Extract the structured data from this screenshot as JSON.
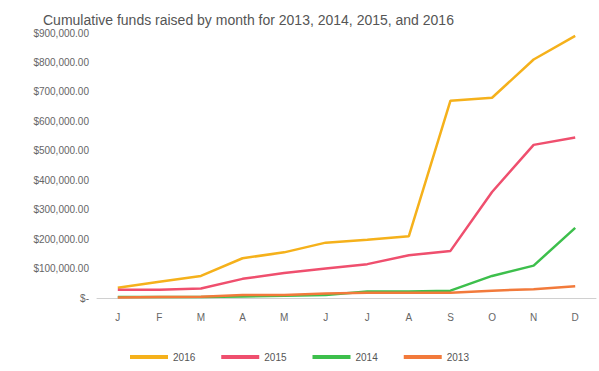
{
  "chart_data": {
    "type": "line",
    "title": "Cumulative funds raised by month for 2013, 2014, 2015, and 2016",
    "categories": [
      "J",
      "F",
      "M",
      "A",
      "M",
      "J",
      "J",
      "A",
      "S",
      "O",
      "N",
      "D"
    ],
    "series": [
      {
        "name": "2016",
        "color": "#f5b11b",
        "values": [
          35000,
          55000,
          75000,
          135000,
          155000,
          188000,
          198000,
          210000,
          670000,
          680000,
          810000,
          890000
        ]
      },
      {
        "name": "2015",
        "color": "#ef4f6e",
        "values": [
          28000,
          28000,
          32000,
          65000,
          85000,
          100000,
          115000,
          145000,
          160000,
          360000,
          520000,
          545000
        ]
      },
      {
        "name": "2014",
        "color": "#3dbf4c",
        "values": [
          3000,
          3000,
          3000,
          5000,
          8000,
          10000,
          22000,
          22000,
          25000,
          75000,
          110000,
          238000
        ]
      },
      {
        "name": "2013",
        "color": "#f27a3b",
        "values": [
          2000,
          3000,
          4000,
          10000,
          10000,
          15000,
          18000,
          18000,
          18000,
          25000,
          30000,
          40000
        ]
      }
    ],
    "ylim": [
      0,
      900000
    ],
    "yticks": [
      {
        "value": 0,
        "label": "$-"
      },
      {
        "value": 100000,
        "label": "$100,000.00"
      },
      {
        "value": 200000,
        "label": "$200,000.00"
      },
      {
        "value": 300000,
        "label": "$300,000.00"
      },
      {
        "value": 400000,
        "label": "$400,000.00"
      },
      {
        "value": 500000,
        "label": "$500,000.00"
      },
      {
        "value": 600000,
        "label": "$600,000.00"
      },
      {
        "value": 700000,
        "label": "$700,000.00"
      },
      {
        "value": 800000,
        "label": "$800,000.00"
      },
      {
        "value": 900000,
        "label": "$900,000.00"
      }
    ],
    "grid": false,
    "legend": "bottom"
  }
}
